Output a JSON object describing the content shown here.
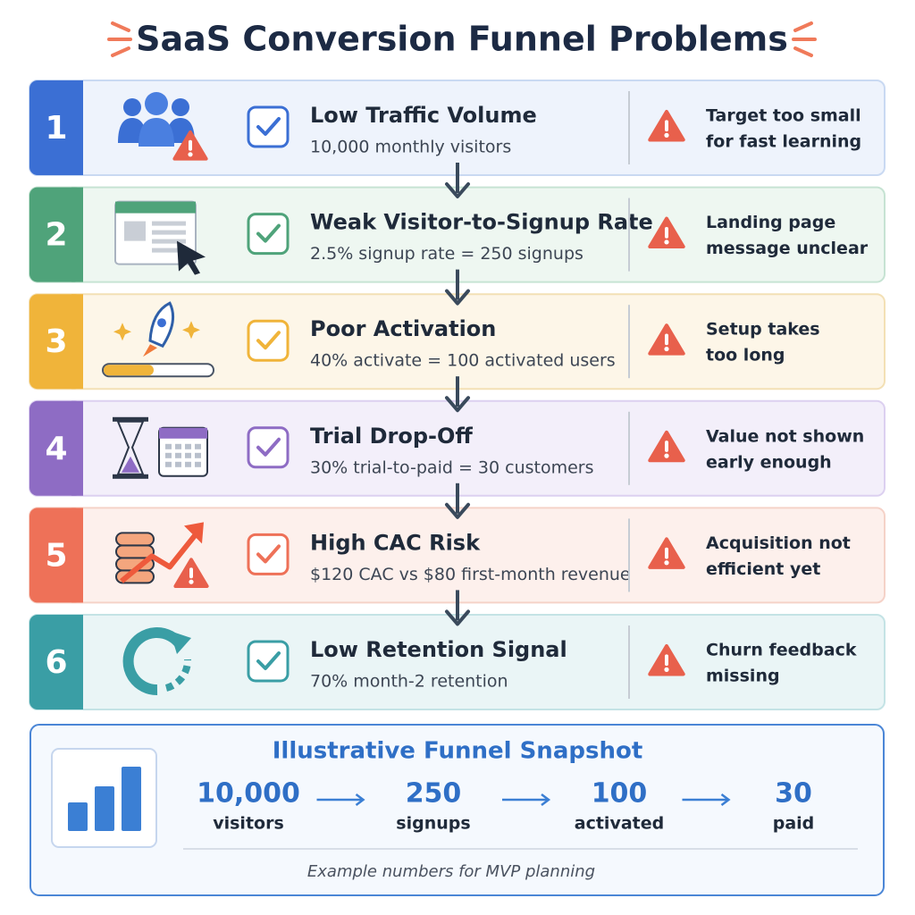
{
  "title": "SaaS Conversion Funnel Problems",
  "steps": [
    {
      "number": "1",
      "title": "Low Traffic Volume",
      "detail": "10,000 monthly visitors",
      "note": [
        "Target too small",
        "for fast learning"
      ]
    },
    {
      "number": "2",
      "title": "Weak Visitor-to-Signup Rate",
      "detail": "2.5% signup rate = 250 signups",
      "note": [
        "Landing page",
        "message unclear"
      ]
    },
    {
      "number": "3",
      "title": "Poor Activation",
      "detail": "40% activate = 100 activated users",
      "note": [
        "Setup takes",
        "too long"
      ]
    },
    {
      "number": "4",
      "title": "Trial Drop-Off",
      "detail": "30% trial-to-paid = 30 customers",
      "note": [
        "Value not shown",
        "early enough"
      ]
    },
    {
      "number": "5",
      "title": "High CAC Risk",
      "detail": "$120 CAC vs $80 first-month revenue",
      "note": [
        "Acquisition not",
        "efficient yet"
      ]
    },
    {
      "number": "6",
      "title": "Low Retention Signal",
      "detail": "70% month-2 retention",
      "note": [
        "Churn feedback",
        "missing"
      ]
    }
  ],
  "snapshot": {
    "title": "Illustrative Funnel Snapshot",
    "stages": [
      {
        "value": "10,000",
        "label": "visitors"
      },
      {
        "value": "250",
        "label": "signups"
      },
      {
        "value": "100",
        "label": "activated"
      },
      {
        "value": "30",
        "label": "paid"
      }
    ],
    "footnote": "Example numbers for MVP planning"
  }
}
